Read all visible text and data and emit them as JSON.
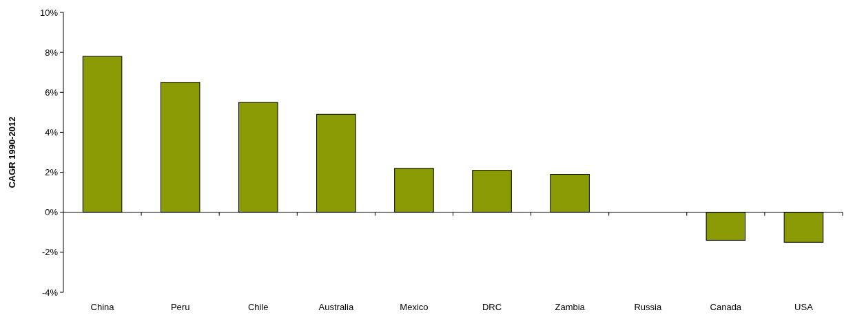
{
  "chart_data": {
    "type": "bar",
    "ylabel": "CAGR 1990-2012",
    "categories": [
      "China",
      "Peru",
      "Chile",
      "Australia",
      "Mexico",
      "DRC",
      "Zambia",
      "Russia",
      "Canada",
      "USA"
    ],
    "values": [
      7.8,
      6.5,
      5.5,
      4.9,
      2.2,
      2.1,
      1.9,
      0,
      -1.4,
      -1.5
    ],
    "color": "#8a9a05",
    "ylim": [
      -4,
      10
    ],
    "yticks": [
      {
        "value": -4,
        "label": "-4%"
      },
      {
        "value": -2,
        "label": "-2%"
      },
      {
        "value": 0,
        "label": "0%"
      },
      {
        "value": 2,
        "label": "2%"
      },
      {
        "value": 4,
        "label": "4%"
      },
      {
        "value": 6,
        "label": "6%"
      },
      {
        "value": 8,
        "label": "8%"
      },
      {
        "value": 10,
        "label": "10%"
      }
    ],
    "orientation": "vertical"
  }
}
